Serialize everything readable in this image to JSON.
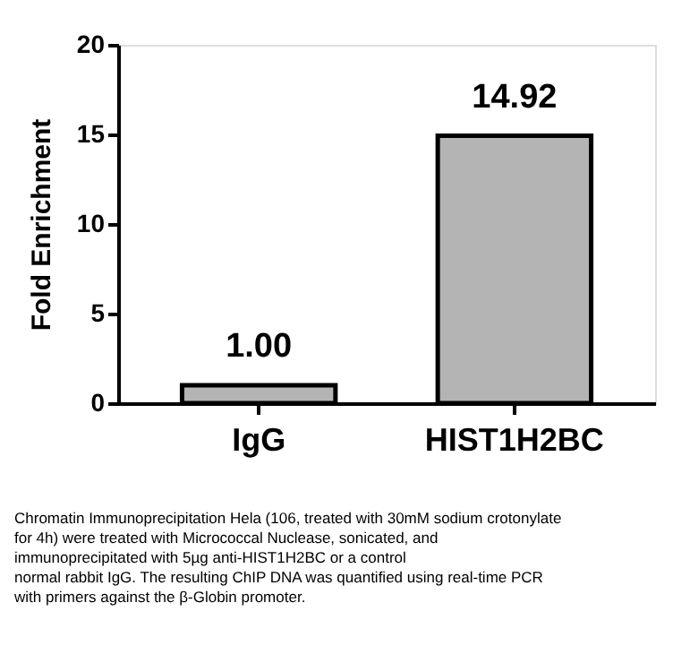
{
  "chart_data": {
    "type": "bar",
    "ylabel": "Fold Enrichment",
    "categories": [
      "IgG",
      "HIST1H2BC"
    ],
    "values": [
      1.0,
      14.92
    ],
    "value_labels": [
      "1.00",
      "14.92"
    ],
    "color": "#b4b4b4",
    "ylim": [
      0,
      20
    ],
    "yticks": [
      0,
      5,
      10,
      15,
      20
    ],
    "grid": false,
    "annotations": [
      "Chromatin Immunoprecipitation Hela (106, treated with 30mM sodium crotonylate",
      "for 4h) were treated with Micrococcal Nuclease, sonicated, and",
      "immunoprecipitated with 5µg anti-HIST1H2BC or a control",
      "normal rabbit IgG. The resulting ChIP DNA was quantified using real-time PCR",
      "with primers against the β-Globin promoter."
    ]
  }
}
